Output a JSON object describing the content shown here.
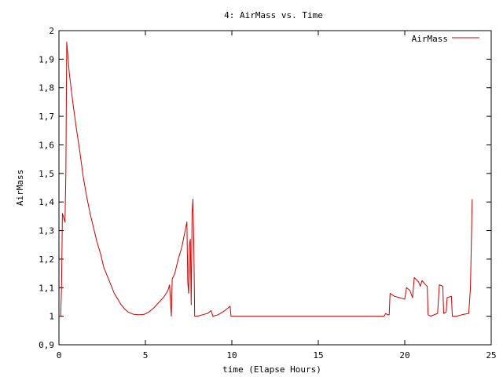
{
  "chart_data": {
    "type": "line",
    "title": "4: AirMass vs. Time",
    "xlabel": "time (Elapse Hours)",
    "ylabel": "AirMass",
    "xlim": [
      0,
      25
    ],
    "ylim": [
      0.9,
      2
    ],
    "xticks": [
      0,
      5,
      10,
      15,
      20,
      25
    ],
    "yticks": [
      0.9,
      1,
      1.1,
      1.2,
      1.3,
      1.4,
      1.5,
      1.6,
      1.7,
      1.8,
      1.9,
      2
    ],
    "ytick_labels": [
      "0,9",
      "1",
      "1,1",
      "1,2",
      "1,3",
      "1,4",
      "1,5",
      "1,6",
      "1,7",
      "1,8",
      "1,9",
      "2"
    ],
    "grid": false,
    "legend_position": "top-right",
    "series": [
      {
        "name": "AirMass",
        "color": "#cc0000",
        "points": [
          [
            0.0,
            1.0
          ],
          [
            0.1,
            1.0
          ],
          [
            0.15,
            1.1
          ],
          [
            0.2,
            1.36
          ],
          [
            0.3,
            1.34
          ],
          [
            0.35,
            1.33
          ],
          [
            0.4,
            1.5
          ],
          [
            0.45,
            1.96
          ],
          [
            0.6,
            1.85
          ],
          [
            0.8,
            1.75
          ],
          [
            1.0,
            1.66
          ],
          [
            1.2,
            1.58
          ],
          [
            1.4,
            1.49
          ],
          [
            1.6,
            1.42
          ],
          [
            1.8,
            1.36
          ],
          [
            2.0,
            1.31
          ],
          [
            2.2,
            1.26
          ],
          [
            2.4,
            1.22
          ],
          [
            2.6,
            1.17
          ],
          [
            2.8,
            1.14
          ],
          [
            3.0,
            1.11
          ],
          [
            3.2,
            1.08
          ],
          [
            3.4,
            1.06
          ],
          [
            3.6,
            1.04
          ],
          [
            3.8,
            1.025
          ],
          [
            4.0,
            1.015
          ],
          [
            4.3,
            1.007
          ],
          [
            4.6,
            1.005
          ],
          [
            4.9,
            1.006
          ],
          [
            5.2,
            1.015
          ],
          [
            5.5,
            1.03
          ],
          [
            5.8,
            1.05
          ],
          [
            6.1,
            1.07
          ],
          [
            6.3,
            1.09
          ],
          [
            6.4,
            1.11
          ],
          [
            6.45,
            1.05
          ],
          [
            6.5,
            1.0
          ],
          [
            6.55,
            1.13
          ],
          [
            6.7,
            1.15
          ],
          [
            6.9,
            1.2
          ],
          [
            7.1,
            1.24
          ],
          [
            7.3,
            1.3
          ],
          [
            7.4,
            1.33
          ],
          [
            7.45,
            1.12
          ],
          [
            7.5,
            1.08
          ],
          [
            7.55,
            1.25
          ],
          [
            7.6,
            1.27
          ],
          [
            7.65,
            1.04
          ],
          [
            7.7,
            1.36
          ],
          [
            7.75,
            1.41
          ],
          [
            7.8,
            1.25
          ],
          [
            7.85,
            1.0
          ],
          [
            8.0,
            1.0
          ],
          [
            8.3,
            1.005
          ],
          [
            8.6,
            1.01
          ],
          [
            8.8,
            1.02
          ],
          [
            8.9,
            1.0
          ],
          [
            9.2,
            1.005
          ],
          [
            9.6,
            1.02
          ],
          [
            9.9,
            1.035
          ],
          [
            9.95,
            1.0
          ],
          [
            10.5,
            1.0
          ],
          [
            12.0,
            1.0
          ],
          [
            14.0,
            1.0
          ],
          [
            16.0,
            1.0
          ],
          [
            18.0,
            1.0
          ],
          [
            18.8,
            1.0
          ],
          [
            18.9,
            1.01
          ],
          [
            19.0,
            1.005
          ],
          [
            19.1,
            1.005
          ],
          [
            19.15,
            1.08
          ],
          [
            19.4,
            1.07
          ],
          [
            19.7,
            1.065
          ],
          [
            20.0,
            1.06
          ],
          [
            20.1,
            1.1
          ],
          [
            20.3,
            1.09
          ],
          [
            20.45,
            1.065
          ],
          [
            20.55,
            1.135
          ],
          [
            20.8,
            1.12
          ],
          [
            20.9,
            1.105
          ],
          [
            21.0,
            1.125
          ],
          [
            21.2,
            1.11
          ],
          [
            21.3,
            1.105
          ],
          [
            21.35,
            1.005
          ],
          [
            21.5,
            1.0
          ],
          [
            21.9,
            1.01
          ],
          [
            22.0,
            1.11
          ],
          [
            22.2,
            1.105
          ],
          [
            22.25,
            1.01
          ],
          [
            22.4,
            1.015
          ],
          [
            22.45,
            1.065
          ],
          [
            22.7,
            1.07
          ],
          [
            22.75,
            1.0
          ],
          [
            23.0,
            1.0
          ],
          [
            23.3,
            1.005
          ],
          [
            23.7,
            1.01
          ],
          [
            23.8,
            1.1
          ],
          [
            23.9,
            1.41
          ]
        ]
      }
    ]
  }
}
